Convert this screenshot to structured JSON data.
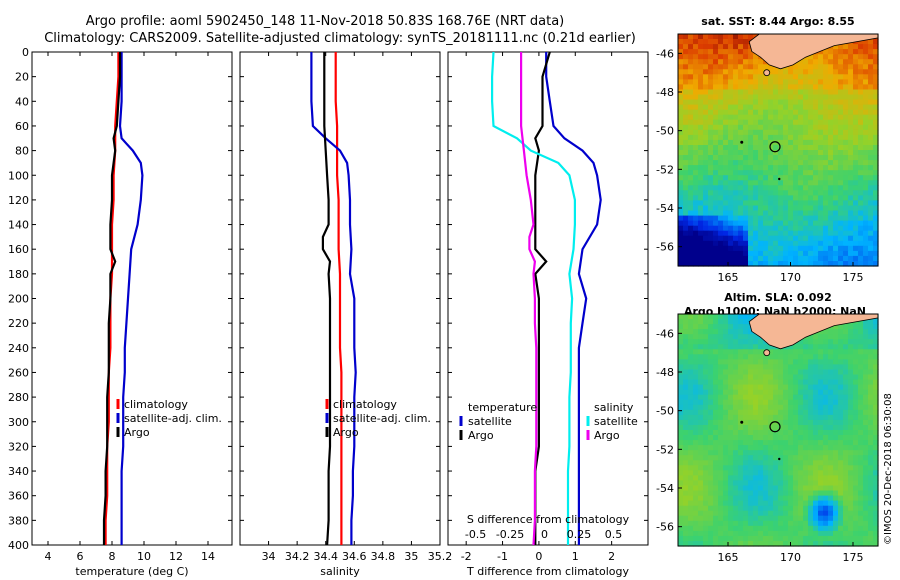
{
  "title_line1": "Argo profile: aoml 5902450_148 11-Nov-2018 50.83S 168.76E (NRT data)",
  "title_line2": "Climatology: CARS2009. Satellite-adjusted climatology: synTS_20181111.nc (0.21d earlier)",
  "sst_header": "sat. SST: 8.44 Argo: 8.55",
  "sla_header_1": "Altim. SLA: 0.092",
  "sla_header_2": "Argo h1000: NaN h2000: NaN",
  "stamp": "©IMOS 20-Dec-2018 06:30:08",
  "colors": {
    "red": "#ff0000",
    "blue": "#0000cc",
    "black": "#000000",
    "cyan": "#00eeee",
    "magenta": "#ee00ee",
    "land": "#f5b795"
  },
  "chart_data": [
    {
      "type": "line",
      "xlabel": "temperature (deg C)",
      "ylabel": "",
      "xlim": [
        3,
        15.5
      ],
      "ylim": [
        400,
        0
      ],
      "xticks": [
        4,
        6,
        8,
        10,
        12,
        14
      ],
      "xtick_labels": [
        "4",
        "6",
        "8",
        "10",
        "12",
        "14"
      ],
      "yticks": [
        0,
        20,
        40,
        60,
        80,
        100,
        120,
        140,
        160,
        180,
        200,
        220,
        240,
        260,
        280,
        300,
        320,
        340,
        360,
        380,
        400
      ],
      "legend": [
        "climatology",
        "satellite-adj. clim.",
        "Argo"
      ],
      "series": [
        {
          "name": "climatology",
          "color": "red",
          "depth": [
            0,
            20,
            40,
            60,
            80,
            100,
            120,
            140,
            160,
            180,
            200,
            220,
            240,
            260,
            280,
            300,
            320,
            340,
            360,
            380,
            400
          ],
          "values": [
            8.4,
            8.4,
            8.3,
            8.2,
            8.2,
            8.1,
            8.1,
            8.0,
            8.0,
            8.0,
            7.9,
            7.9,
            7.9,
            7.8,
            7.8,
            7.8,
            7.7,
            7.7,
            7.7,
            7.6,
            7.6
          ]
        },
        {
          "name": "satellite-adj. clim.",
          "color": "blue",
          "depth": [
            0,
            20,
            40,
            60,
            70,
            80,
            90,
            100,
            120,
            140,
            160,
            180,
            200,
            220,
            240,
            260,
            280,
            300,
            320,
            340,
            360,
            380,
            400
          ],
          "values": [
            8.6,
            8.6,
            8.6,
            8.5,
            8.6,
            9.3,
            9.8,
            9.9,
            9.8,
            9.6,
            9.2,
            9.1,
            9.0,
            8.9,
            8.8,
            8.8,
            8.7,
            8.7,
            8.7,
            8.6,
            8.6,
            8.6,
            8.6
          ]
        },
        {
          "name": "Argo",
          "color": "black",
          "depth": [
            0,
            20,
            40,
            60,
            70,
            80,
            100,
            120,
            140,
            160,
            170,
            180,
            200,
            220,
            240,
            260,
            280,
            300,
            320,
            340,
            360,
            380,
            400
          ],
          "values": [
            8.5,
            8.5,
            8.4,
            8.3,
            8.1,
            8.2,
            8.0,
            8.0,
            7.9,
            7.9,
            8.2,
            7.9,
            7.9,
            7.8,
            7.8,
            7.8,
            7.7,
            7.7,
            7.7,
            7.6,
            7.6,
            7.5,
            7.5
          ]
        }
      ]
    },
    {
      "type": "line",
      "xlabel": "salinity",
      "ylabel": "",
      "xlim": [
        33.8,
        35.2
      ],
      "ylim": [
        400,
        0
      ],
      "xticks": [
        34,
        34.2,
        34.4,
        34.6,
        34.8,
        35,
        35.2
      ],
      "xtick_labels": [
        "34",
        "34.2",
        "34.4",
        "34.6",
        "34.8",
        "35",
        "35.2"
      ],
      "legend": [
        "climatology",
        "satellite-adj. clim.",
        "Argo"
      ],
      "series": [
        {
          "name": "climatology",
          "color": "red",
          "depth": [
            0,
            20,
            40,
            60,
            80,
            100,
            120,
            140,
            160,
            180,
            200,
            220,
            240,
            260,
            280,
            300,
            320,
            340,
            360,
            380,
            400
          ],
          "values": [
            34.47,
            34.47,
            34.47,
            34.48,
            34.48,
            34.48,
            34.49,
            34.49,
            34.49,
            34.5,
            34.5,
            34.5,
            34.5,
            34.51,
            34.51,
            34.51,
            34.51,
            34.51,
            34.51,
            34.51,
            34.51
          ]
        },
        {
          "name": "satellite-adj. clim.",
          "color": "blue",
          "depth": [
            0,
            20,
            40,
            60,
            70,
            80,
            90,
            100,
            120,
            140,
            160,
            180,
            200,
            220,
            240,
            260,
            280,
            300,
            320,
            340,
            360,
            380,
            400
          ],
          "values": [
            34.3,
            34.3,
            34.3,
            34.31,
            34.4,
            34.5,
            34.55,
            34.56,
            34.57,
            34.57,
            34.58,
            34.57,
            34.6,
            34.6,
            34.6,
            34.61,
            34.6,
            34.6,
            34.6,
            34.59,
            34.59,
            34.58,
            34.58
          ]
        },
        {
          "name": "Argo",
          "color": "black",
          "depth": [
            0,
            20,
            40,
            60,
            80,
            100,
            120,
            140,
            150,
            160,
            170,
            180,
            200,
            220,
            240,
            260,
            280,
            300,
            320,
            340,
            360,
            380,
            400
          ],
          "values": [
            34.39,
            34.39,
            34.39,
            34.39,
            34.4,
            34.41,
            34.42,
            34.42,
            34.38,
            34.38,
            34.43,
            34.42,
            34.43,
            34.43,
            34.43,
            34.43,
            34.43,
            34.43,
            34.43,
            34.42,
            34.42,
            34.42,
            34.41
          ]
        }
      ]
    },
    {
      "type": "line",
      "xlabel": "T difference from climatology",
      "x2label": "S difference from climatology",
      "xlim": [
        -2.5,
        3
      ],
      "ylim": [
        400,
        0
      ],
      "xticks": [
        -2,
        -1,
        0,
        1,
        2
      ],
      "xtick_labels": [
        "-2",
        "-1",
        "0",
        "1",
        "2"
      ],
      "x2ticks": [
        -0.5,
        -0.25,
        0,
        0.25,
        0.5
      ],
      "x2tick_labels": [
        "-0.5",
        "-0.25",
        "0",
        "0.25",
        "0.5"
      ],
      "legend_left_title": "temperature",
      "legend_right_title": "salinity",
      "legend": [
        "satellite",
        "Argo"
      ],
      "series": [
        {
          "name": "temperature satellite",
          "color": "blue",
          "depth": [
            0,
            20,
            40,
            60,
            70,
            80,
            90,
            100,
            120,
            140,
            160,
            180,
            200,
            220,
            240,
            260,
            280,
            300,
            320,
            340,
            360,
            380,
            400
          ],
          "values": [
            0.2,
            0.2,
            0.3,
            0.4,
            0.7,
            1.2,
            1.5,
            1.6,
            1.7,
            1.6,
            1.2,
            1.1,
            1.3,
            1.2,
            1.1,
            1.1,
            1.1,
            1.1,
            1.1,
            1.1,
            1.1,
            1.1,
            1.1
          ]
        },
        {
          "name": "temperature Argo",
          "color": "black",
          "depth": [
            0,
            20,
            40,
            60,
            70,
            80,
            100,
            120,
            140,
            160,
            170,
            180,
            200,
            220,
            240,
            260,
            280,
            300,
            320,
            340,
            360,
            380,
            400
          ],
          "values": [
            0.3,
            0.1,
            0.1,
            0.1,
            -0.1,
            0.0,
            -0.1,
            -0.1,
            -0.1,
            -0.1,
            0.2,
            -0.1,
            0.0,
            0.0,
            0.0,
            0.0,
            0.0,
            0.0,
            0.0,
            -0.1,
            -0.1,
            -0.1,
            -0.1
          ]
        },
        {
          "name": "salinity satellite",
          "color": "cyan",
          "depth": [
            0,
            20,
            40,
            60,
            70,
            80,
            90,
            100,
            120,
            140,
            160,
            180,
            200,
            220,
            240,
            260,
            280,
            300,
            320,
            340,
            360,
            380,
            400
          ],
          "values": [
            -0.37,
            -0.38,
            -0.38,
            -0.37,
            -0.2,
            -0.1,
            0.1,
            0.18,
            0.22,
            0.22,
            0.21,
            0.18,
            0.2,
            0.19,
            0.19,
            0.19,
            0.18,
            0.18,
            0.18,
            0.17,
            0.17,
            0.17,
            0.17
          ]
        },
        {
          "name": "salinity Argo",
          "color": "magenta",
          "depth": [
            0,
            20,
            40,
            60,
            80,
            100,
            120,
            140,
            150,
            160,
            170,
            180,
            200,
            220,
            240,
            260,
            280,
            300,
            320,
            340,
            360,
            380,
            400
          ],
          "values": [
            -0.17,
            -0.17,
            -0.17,
            -0.17,
            -0.15,
            -0.13,
            -0.1,
            -0.08,
            -0.11,
            -0.11,
            -0.07,
            -0.08,
            -0.07,
            -0.07,
            -0.06,
            -0.06,
            -0.06,
            -0.06,
            -0.06,
            -0.07,
            -0.07,
            -0.07,
            -0.08
          ]
        }
      ]
    },
    {
      "type": "heatmap",
      "title": "sat. SST: 8.44 Argo: 8.55",
      "xlim": [
        161,
        177
      ],
      "ylim": [
        -57,
        -45
      ],
      "xticks": [
        165,
        170,
        175
      ],
      "xtick_labels": [
        "165",
        "170",
        "175"
      ],
      "yticks": [
        -46,
        -48,
        -50,
        -52,
        -54,
        -56
      ],
      "ytick_labels": [
        "-46",
        "-48",
        "-50",
        "-52",
        "-54",
        "-56"
      ],
      "argo_position": {
        "lon": 168.76,
        "lat": -50.83
      }
    },
    {
      "type": "heatmap",
      "title": "Altim. SLA: 0.092",
      "subtitle": "Argo h1000: NaN h2000: NaN",
      "xlim": [
        161,
        177
      ],
      "ylim": [
        -57,
        -45
      ],
      "xticks": [
        165,
        170,
        175
      ],
      "xtick_labels": [
        "165",
        "170",
        "175"
      ],
      "yticks": [
        -46,
        -48,
        -50,
        -52,
        -54,
        -56
      ],
      "ytick_labels": [
        "-46",
        "-48",
        "-50",
        "-52",
        "-54",
        "-56"
      ],
      "argo_position": {
        "lon": 168.76,
        "lat": -50.83
      }
    }
  ]
}
